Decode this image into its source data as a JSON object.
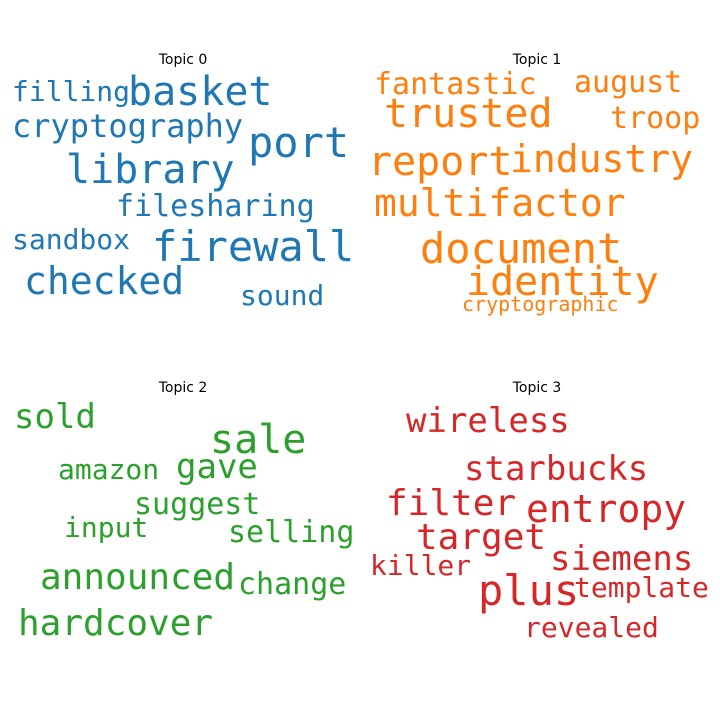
{
  "panels": [
    {
      "title": "Topic 0",
      "color": "#1f77b4",
      "words": [
        "filling",
        "basket",
        "cryptography",
        "port",
        "library",
        "filesharing",
        "sandbox",
        "firewall",
        "checked",
        "sound"
      ]
    },
    {
      "title": "Topic 1",
      "color": "#ff7f0e",
      "words": [
        "fantastic",
        "august",
        "trusted",
        "troop",
        "report",
        "industry",
        "multifactor",
        "document",
        "identity",
        "cryptographic"
      ]
    },
    {
      "title": "Topic 2",
      "color": "#2ca02c",
      "words": [
        "sold",
        "sale",
        "amazon",
        "gave",
        "suggest",
        "input",
        "selling",
        "announced",
        "change",
        "hardcover"
      ]
    },
    {
      "title": "Topic 3",
      "color": "#d62728",
      "words": [
        "wireless",
        "starbucks",
        "filter",
        "entropy",
        "target",
        "killer",
        "siemens",
        "plus",
        "template",
        "revealed"
      ]
    }
  ]
}
